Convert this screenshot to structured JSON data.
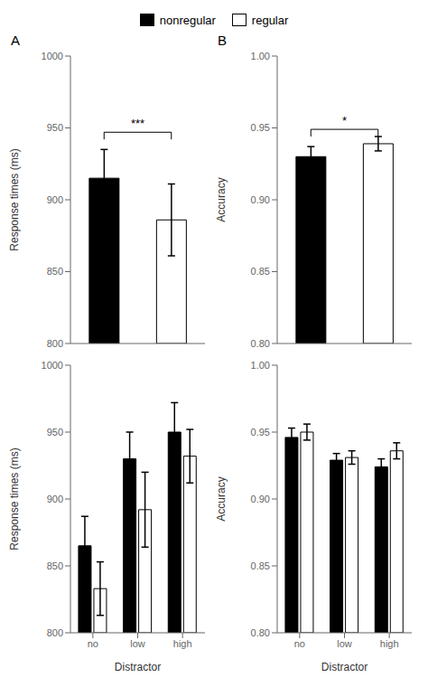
{
  "chart_data": [
    {
      "type": "bar",
      "title": "A",
      "ylabel": "Response times (ms)",
      "ylim": [
        800,
        1000
      ],
      "yticks": [
        800,
        850,
        900,
        950,
        1000
      ],
      "tick_labels": "y",
      "legend": "top",
      "series": [
        {
          "name": "nonregular",
          "color": "#000000",
          "values": [
            915
          ],
          "errors": [
            20
          ]
        },
        {
          "name": "regular",
          "color": "#ffffff",
          "values": [
            886
          ],
          "errors": [
            25
          ]
        }
      ],
      "annotations": [
        {
          "text": "***"
        }
      ]
    },
    {
      "type": "bar",
      "title": "B",
      "ylabel": "Accuracy",
      "ylim": [
        0.8,
        1.0
      ],
      "yticks": [
        {
          "value": 0.8,
          "label": "0.80"
        },
        {
          "value": 0.85,
          "label": "0.85"
        },
        {
          "value": 0.9,
          "label": "0.90"
        },
        {
          "value": 0.95,
          "label": "0.95"
        },
        {
          "value": 1.0,
          "label": "1.00"
        }
      ],
      "tick_labels": "y",
      "legend": "top",
      "series": [
        {
          "name": "nonregular",
          "color": "#000000",
          "values": [
            0.93
          ],
          "errors": [
            0.007
          ]
        },
        {
          "name": "regular",
          "color": "#ffffff",
          "values": [
            0.939
          ],
          "errors": [
            0.005
          ]
        }
      ],
      "annotations": [
        {
          "text": "*"
        }
      ]
    },
    {
      "type": "bar",
      "xlabel": "Distractor",
      "ylabel": "Response times (ms)",
      "categories": [
        "no",
        "low",
        "high"
      ],
      "ylim": [
        800,
        1000
      ],
      "yticks": [
        800,
        850,
        900,
        950,
        1000
      ],
      "legend": "top",
      "series": [
        {
          "name": "nonregular",
          "color": "#000000",
          "values": [
            865,
            930,
            950
          ],
          "errors": [
            22,
            20,
            22
          ]
        },
        {
          "name": "regular",
          "color": "#ffffff",
          "values": [
            833,
            892,
            932
          ],
          "errors": [
            20,
            28,
            20
          ]
        }
      ]
    },
    {
      "type": "bar",
      "xlabel": "Distractor",
      "ylabel": "Accuracy",
      "categories": [
        "no",
        "low",
        "high"
      ],
      "ylim": [
        0.8,
        1.0
      ],
      "yticks": [
        {
          "value": 0.8,
          "label": "0.80"
        },
        {
          "value": 0.85,
          "label": "0.85"
        },
        {
          "value": 0.9,
          "label": "0.90"
        },
        {
          "value": 0.95,
          "label": "0.95"
        },
        {
          "value": 1.0,
          "label": "1.00"
        }
      ],
      "legend": "top",
      "series": [
        {
          "name": "nonregular",
          "color": "#000000",
          "values": [
            0.946,
            0.929,
            0.924
          ],
          "errors": [
            0.007,
            0.005,
            0.006
          ]
        },
        {
          "name": "regular",
          "color": "#ffffff",
          "values": [
            0.95,
            0.931,
            0.936
          ],
          "errors": [
            0.006,
            0.005,
            0.006
          ]
        }
      ]
    }
  ]
}
